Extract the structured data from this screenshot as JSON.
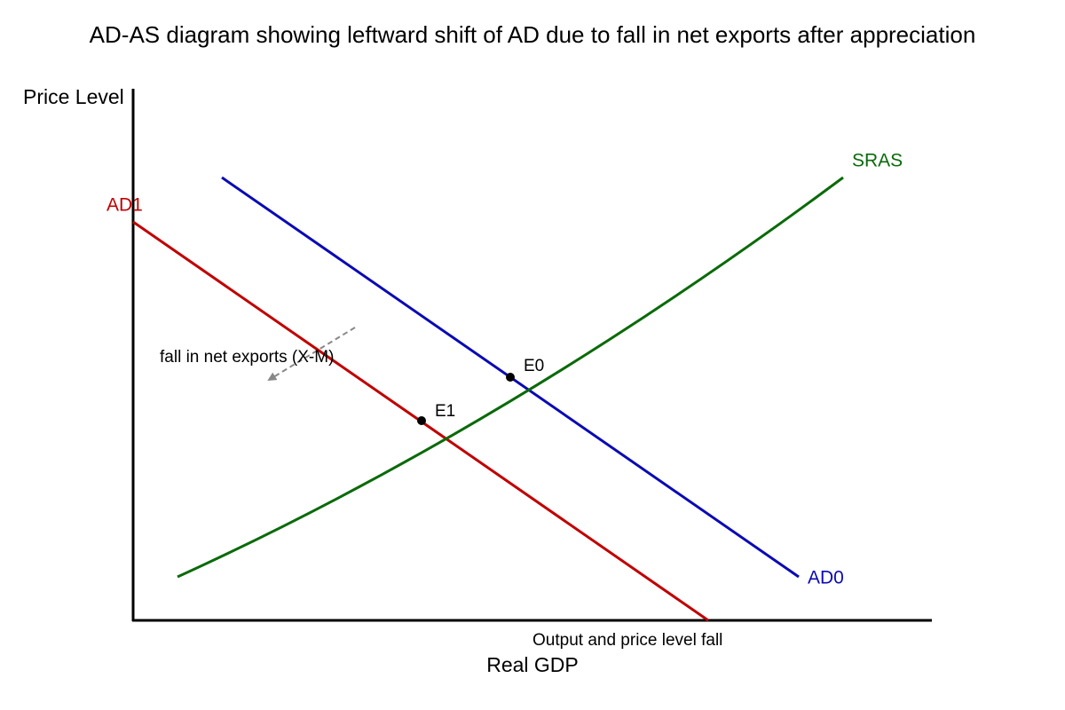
{
  "title": "AD-AS diagram showing leftward shift of AD due to fall in net exports after appreciation",
  "axes": {
    "y_label": "Price Level",
    "x_label": "Real GDP"
  },
  "curves": [
    {
      "label": "AD0"
    },
    {
      "label": "AD1"
    },
    {
      "label": "SRAS"
    }
  ],
  "points": [
    {
      "label": "E0"
    },
    {
      "label": "E1"
    }
  ],
  "annotations": {
    "shift": "fall in net exports (X-M)",
    "result": "Output and price level fall"
  }
}
